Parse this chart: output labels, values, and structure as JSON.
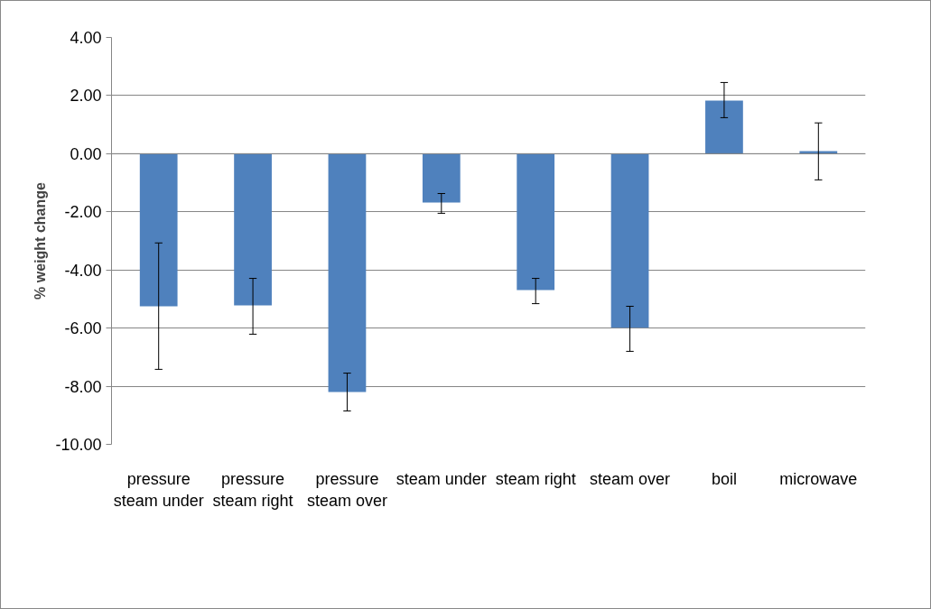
{
  "chart_data": {
    "type": "bar",
    "ylabel": "% weight change",
    "categories": [
      "pressure steam under",
      "pressure steam right",
      "pressure steam over",
      "steam under",
      "steam right",
      "steam over",
      "boil",
      "microwave"
    ],
    "values": [
      -5.25,
      -5.22,
      -8.2,
      -1.68,
      -4.69,
      -5.99,
      1.83,
      0.09
    ],
    "errors": [
      [
        -7.42,
        -3.07
      ],
      [
        -6.21,
        -4.29
      ],
      [
        -8.85,
        -7.55
      ],
      [
        -2.05,
        -1.37
      ],
      [
        -5.16,
        -4.29
      ],
      [
        -6.8,
        -5.25
      ],
      [
        1.24,
        2.45
      ],
      [
        -0.9,
        1.06
      ]
    ],
    "color": "#4f81bd",
    "ylim": [
      -10,
      4
    ],
    "yticks": [
      {
        "value": -10,
        "label": "-10.00"
      },
      {
        "value": -8,
        "label": "-8.00"
      },
      {
        "value": -6,
        "label": "-6.00"
      },
      {
        "value": -4,
        "label": "-4.00"
      },
      {
        "value": -2,
        "label": "-2.00"
      },
      {
        "value": 0,
        "label": "0.00"
      },
      {
        "value": 2,
        "label": "2.00"
      },
      {
        "value": 4,
        "label": "4.00"
      }
    ],
    "grid": "y"
  }
}
